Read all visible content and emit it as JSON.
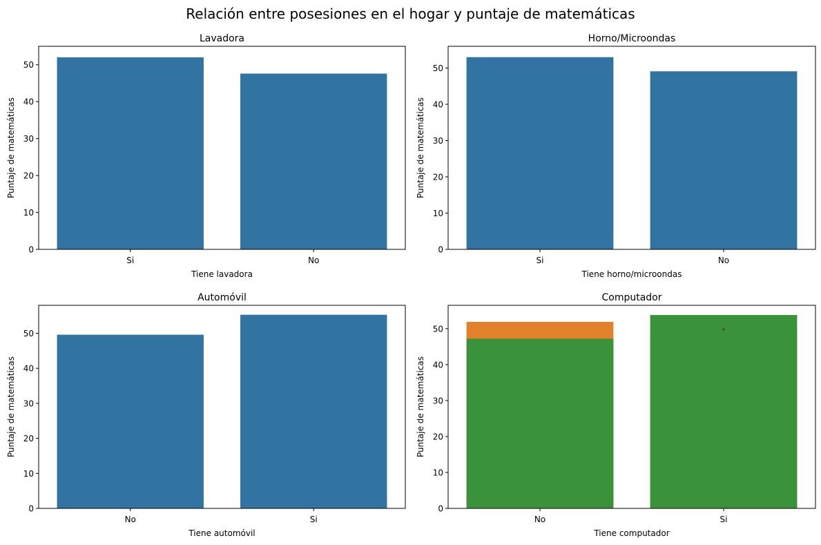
{
  "suptitle": "Relación entre posesiones en el hogar y puntaje de matemáticas",
  "colors": {
    "blue": "#3274a1",
    "orange": "#e1812c",
    "green": "#3a923a",
    "errorbar": "#424242"
  },
  "chart_data": [
    {
      "type": "bar",
      "title": "Lavadora",
      "xlabel": "Tiene lavadora",
      "ylabel": "Puntaje de matemáticas",
      "categories": [
        "Si",
        "No"
      ],
      "ylim": [
        0,
        55
      ],
      "yticks": [
        0,
        10,
        20,
        30,
        40,
        50
      ],
      "series": [
        {
          "values": [
            52.0,
            47.6
          ],
          "color": "blue"
        }
      ]
    },
    {
      "type": "bar",
      "title": "Horno/Microondas",
      "xlabel": "Tiene horno/microondas",
      "ylabel": "Puntaje de matemáticas",
      "categories": [
        "Si",
        "No"
      ],
      "ylim": [
        0,
        56
      ],
      "yticks": [
        0,
        10,
        20,
        30,
        40,
        50
      ],
      "series": [
        {
          "values": [
            53.0,
            49.1
          ],
          "color": "blue"
        }
      ]
    },
    {
      "type": "bar",
      "title": "Automóvil",
      "xlabel": "Tiene automóvil",
      "ylabel": "Puntaje de matemáticas",
      "categories": [
        "No",
        "Si"
      ],
      "ylim": [
        0,
        58
      ],
      "yticks": [
        0,
        10,
        20,
        30,
        40,
        50
      ],
      "series": [
        {
          "values": [
            49.6,
            55.3
          ],
          "color": "blue"
        }
      ]
    },
    {
      "type": "bar",
      "title": "Computador",
      "xlabel": "Tiene computador",
      "ylabel": "Puntaje de matemáticas",
      "categories": [
        "No",
        "Si"
      ],
      "ylim": [
        0,
        56.5
      ],
      "yticks": [
        0,
        10,
        20,
        30,
        40,
        50
      ],
      "series": [
        {
          "values": [
            51.9,
            49.8
          ],
          "color": "orange",
          "errorbar": [
            null,
            [
              49.5,
              50.1
            ]
          ]
        },
        {
          "values": [
            47.2,
            53.8
          ],
          "color": "green"
        }
      ]
    }
  ]
}
